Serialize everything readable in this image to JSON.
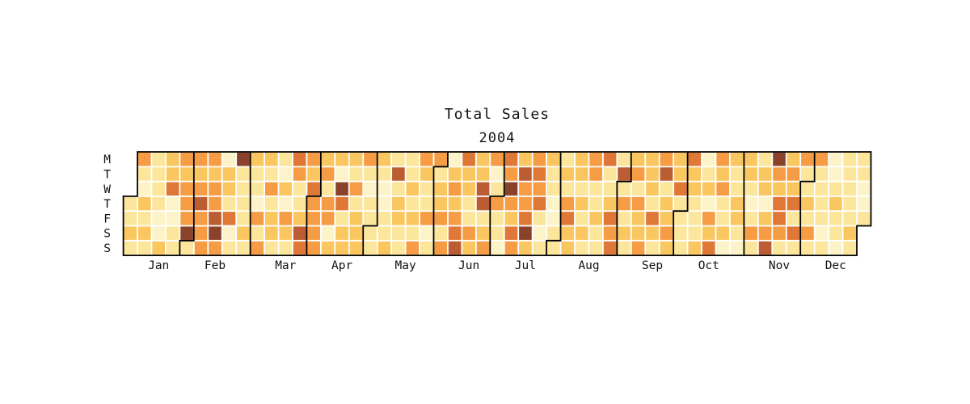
{
  "title": "Total Sales",
  "subtitle": "2004",
  "chart_data": {
    "type": "heatmap",
    "variant": "calendar-year-heatmap",
    "title": "Total Sales",
    "year_label": "2004",
    "day_labels": [
      "M",
      "T",
      "W",
      "T",
      "F",
      "S",
      "S"
    ],
    "month_labels": [
      "Jan",
      "Feb",
      "Mar",
      "Apr",
      "May",
      "Jun",
      "Jul",
      "Aug",
      "Sep",
      "Oct",
      "Nov",
      "Dec"
    ],
    "month_lengths": [
      31,
      29,
      31,
      30,
      31,
      30,
      31,
      31,
      30,
      31,
      30,
      31
    ],
    "first_day_row": 3,
    "num_week_columns": 53,
    "legend": "none",
    "grid_orientation": "weeks (columns, Jan-Dec) x days (rows, Mon-Sun); values are color levels 0=lowest..6=highest; null = outside year",
    "level_colors": [
      "#FCF4C8",
      "#FBE69B",
      "#FAC660",
      "#F59C44",
      "#DF7737",
      "#BC5C32",
      "#8A432A"
    ],
    "month_border_color": "#000000",
    "cell_gap_color": "#ffffff",
    "weeks": [
      [
        null,
        null,
        null,
        1,
        1,
        2,
        1
      ],
      [
        3,
        1,
        0,
        2,
        1,
        2,
        1
      ],
      [
        1,
        1,
        1,
        1,
        0,
        0,
        2
      ],
      [
        2,
        2,
        4,
        0,
        0,
        1,
        1
      ],
      [
        3,
        2,
        3,
        3,
        3,
        6,
        1
      ],
      [
        3,
        2,
        3,
        5,
        3,
        3,
        3
      ],
      [
        3,
        2,
        3,
        3,
        5,
        6,
        3
      ],
      [
        0,
        2,
        2,
        1,
        4,
        0,
        1
      ],
      [
        6,
        1,
        1,
        1,
        1,
        2,
        1
      ],
      [
        2,
        1,
        1,
        0,
        3,
        1,
        3
      ],
      [
        2,
        1,
        3,
        1,
        2,
        2,
        1
      ],
      [
        1,
        0,
        2,
        0,
        3,
        2,
        1
      ],
      [
        4,
        3,
        1,
        1,
        2,
        5,
        4
      ],
      [
        3,
        2,
        4,
        3,
        3,
        3,
        3
      ],
      [
        2,
        3,
        1,
        3,
        3,
        0,
        2
      ],
      [
        2,
        0,
        6,
        4,
        1,
        2,
        2
      ],
      [
        2,
        1,
        3,
        1,
        2,
        2,
        2
      ],
      [
        3,
        1,
        0,
        1,
        1,
        1,
        1
      ],
      [
        2,
        1,
        0,
        0,
        1,
        1,
        2
      ],
      [
        1,
        5,
        1,
        2,
        2,
        1,
        1
      ],
      [
        1,
        1,
        2,
        1,
        2,
        1,
        3
      ],
      [
        3,
        2,
        1,
        1,
        3,
        0,
        1
      ],
      [
        3,
        1,
        2,
        2,
        3,
        1,
        3
      ],
      [
        0,
        2,
        3,
        2,
        3,
        4,
        5
      ],
      [
        4,
        2,
        2,
        1,
        1,
        3,
        2
      ],
      [
        2,
        2,
        5,
        5,
        1,
        2,
        3
      ],
      [
        3,
        0,
        1,
        3,
        1,
        1,
        0
      ],
      [
        4,
        3,
        6,
        3,
        2,
        4,
        3
      ],
      [
        2,
        5,
        3,
        3,
        4,
        6,
        2
      ],
      [
        3,
        4,
        3,
        4,
        1,
        0,
        1
      ],
      [
        2,
        1,
        1,
        0,
        0,
        1,
        1
      ],
      [
        1,
        2,
        1,
        3,
        4,
        2,
        2
      ],
      [
        2,
        2,
        1,
        2,
        1,
        2,
        1
      ],
      [
        3,
        3,
        1,
        1,
        2,
        1,
        1
      ],
      [
        4,
        1,
        1,
        2,
        4,
        3,
        4
      ],
      [
        1,
        5,
        1,
        3,
        1,
        2,
        1
      ],
      [
        2,
        3,
        1,
        3,
        2,
        2,
        3
      ],
      [
        2,
        2,
        2,
        1,
        4,
        2,
        1
      ],
      [
        3,
        5,
        1,
        2,
        2,
        3,
        2
      ],
      [
        2,
        2,
        4,
        1,
        1,
        1,
        1
      ],
      [
        4,
        2,
        2,
        1,
        1,
        1,
        2
      ],
      [
        0,
        1,
        2,
        0,
        3,
        2,
        4
      ],
      [
        3,
        2,
        3,
        1,
        1,
        2,
        0
      ],
      [
        2,
        1,
        1,
        2,
        2,
        1,
        0
      ],
      [
        2,
        2,
        1,
        0,
        1,
        3,
        1
      ],
      [
        1,
        2,
        2,
        0,
        2,
        3,
        5
      ],
      [
        6,
        3,
        2,
        4,
        4,
        3,
        1
      ],
      [
        2,
        3,
        2,
        4,
        1,
        4,
        1
      ],
      [
        3,
        1,
        1,
        2,
        1,
        3,
        1
      ],
      [
        3,
        1,
        1,
        1,
        1,
        0,
        1
      ],
      [
        0,
        0,
        1,
        2,
        1,
        1,
        0
      ],
      [
        1,
        1,
        1,
        1,
        1,
        2,
        1
      ],
      [
        1,
        1,
        0,
        0,
        1,
        null,
        null
      ]
    ]
  }
}
